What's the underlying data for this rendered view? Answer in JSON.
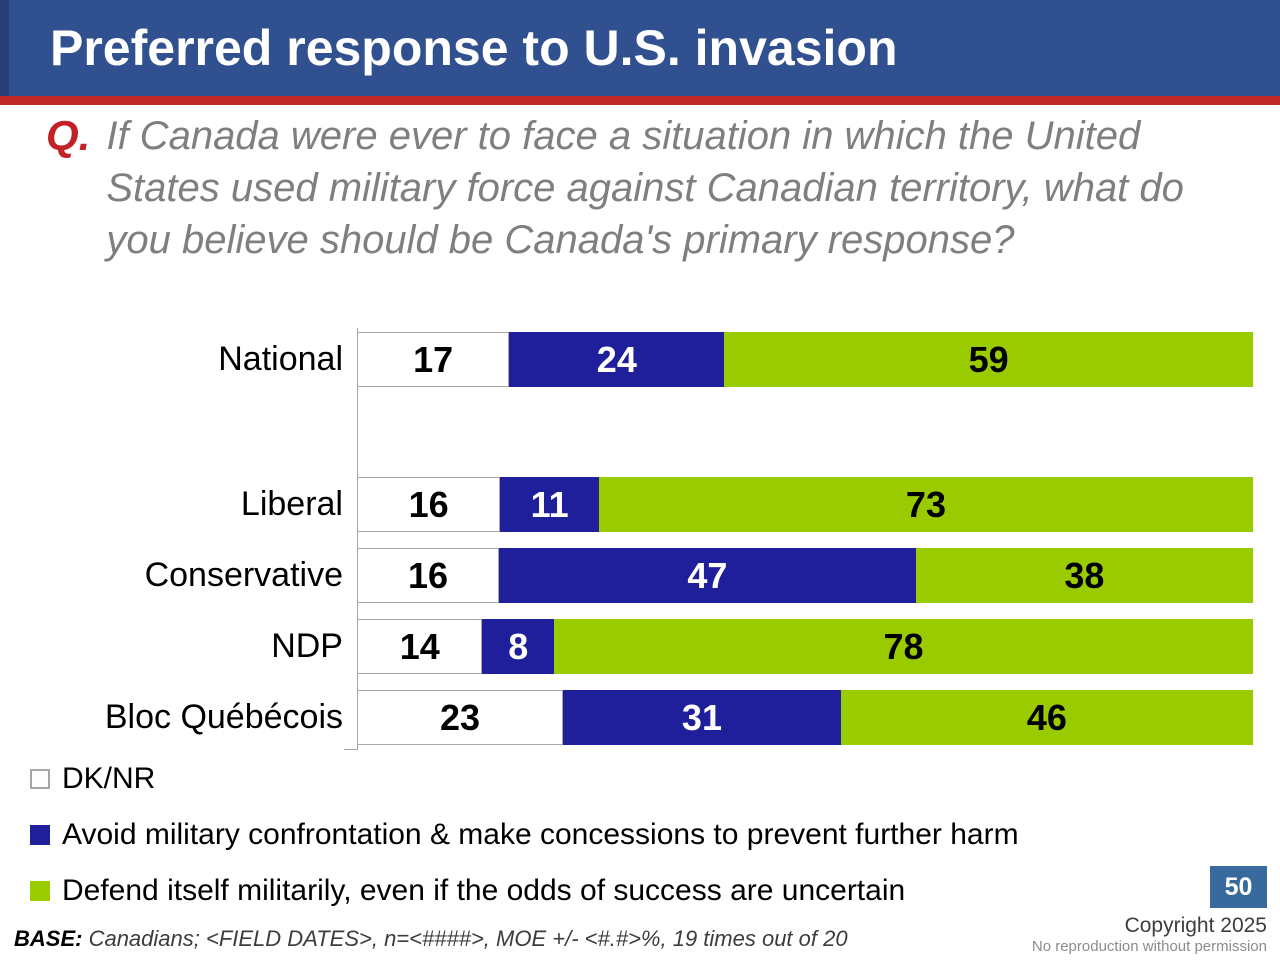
{
  "header": {
    "title": "Preferred response to U.S. invasion"
  },
  "question": {
    "prefix": "Q.",
    "text": "If Canada were ever to face a situation in which the United States used military force against Canadian territory, what do you believe should be Canada's primary response?"
  },
  "chart_data": {
    "type": "bar",
    "orientation": "horizontal",
    "stacked": true,
    "xlim": [
      0,
      100
    ],
    "value_labels": "inside",
    "legend_position": "bottom-left",
    "categories": [
      "National",
      "Liberal",
      "Conservative",
      "NDP",
      "Bloc Québécois"
    ],
    "series": [
      {
        "name": "DK/NR",
        "key": "dknr",
        "color": "#FFFFFF",
        "label_color": "#000000",
        "values": [
          17,
          16,
          16,
          14,
          23
        ]
      },
      {
        "name": "Avoid military confrontation & make concessions to prevent further harm",
        "key": "avoid",
        "color": "#1F1F9B",
        "label_color": "#FFFFFF",
        "values": [
          24,
          11,
          47,
          8,
          31
        ]
      },
      {
        "name": "Defend itself militarily, even if the odds of success are uncertain",
        "key": "defend",
        "color": "#9ACA00",
        "label_color": "#000000",
        "values": [
          59,
          73,
          38,
          78,
          46
        ]
      }
    ]
  },
  "footer": {
    "base_label": "BASE:",
    "base_text": " Canadians; <FIELD DATES>, n=<####>, MOE +/- <#.#>%, 19 times out of 20",
    "page_number": "50",
    "copyright": "Copyright 2025",
    "reproduction": "No reproduction without permission"
  },
  "colors": {
    "header_blue": "#30508F",
    "accent_red": "#BE2826",
    "question_gray": "#7F7F7F",
    "q_red": "#C42127",
    "navy": "#1F1F9B",
    "green": "#9ACA00",
    "axis_gray": "#A6A6A6",
    "page_box_blue": "#396A9E"
  }
}
